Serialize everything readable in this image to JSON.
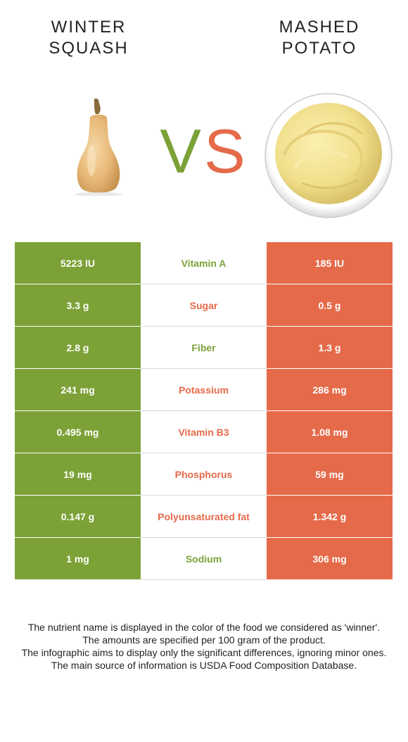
{
  "header": {
    "left_food": "WINTER\nSQUASH",
    "right_food": "MASHED\nPOTATO",
    "vs_v": "V",
    "vs_s": "S"
  },
  "colors": {
    "left": "#7ca237",
    "right": "#e56a4a"
  },
  "rows": [
    {
      "nutrient": "Vitamin A",
      "left": "5223 IU",
      "right": "185 IU",
      "winner": "left"
    },
    {
      "nutrient": "Sugar",
      "left": "3.3 g",
      "right": "0.5 g",
      "winner": "right"
    },
    {
      "nutrient": "Fiber",
      "left": "2.8 g",
      "right": "1.3 g",
      "winner": "left"
    },
    {
      "nutrient": "Potassium",
      "left": "241 mg",
      "right": "286 mg",
      "winner": "right"
    },
    {
      "nutrient": "Vitamin B3",
      "left": "0.495 mg",
      "right": "1.08 mg",
      "winner": "right"
    },
    {
      "nutrient": "Phosphorus",
      "left": "19 mg",
      "right": "59 mg",
      "winner": "right"
    },
    {
      "nutrient": "Polyunsaturated fat",
      "left": "0.147 g",
      "right": "1.342 g",
      "winner": "right"
    },
    {
      "nutrient": "Sodium",
      "left": "1 mg",
      "right": "306 mg",
      "winner": "left"
    }
  ],
  "footer": {
    "line1": "The nutrient name is displayed in the color of the food we considered as 'winner'.",
    "line2": "The amounts are specified per 100 gram of the product.",
    "line3": "The infographic aims to display only the significant differences, ignoring minor ones.",
    "line4": "The main source of information is USDA Food Composition Database."
  }
}
